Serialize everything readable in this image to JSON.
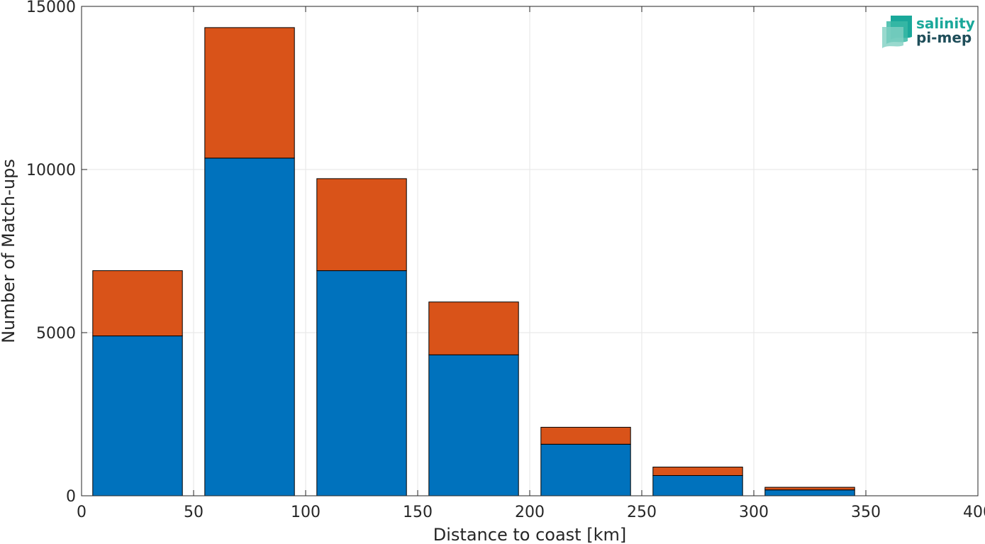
{
  "chart_data": {
    "type": "bar",
    "stacked": true,
    "xlabel": "Distance to coast [km]",
    "ylabel": "Number of Match-ups",
    "xlim": [
      0,
      400
    ],
    "ylim": [
      0,
      15000
    ],
    "xticks": [
      0,
      50,
      100,
      150,
      200,
      250,
      300,
      350,
      400
    ],
    "yticks": [
      0,
      5000,
      10000,
      15000
    ],
    "grid": true,
    "bin_width": 40,
    "x": [
      25,
      75,
      125,
      175,
      225,
      275,
      325
    ],
    "series": [
      {
        "color": "#0072BD",
        "values": [
          4900,
          10350,
          6900,
          4320,
          1580,
          620,
          180
        ]
      },
      {
        "color": "#D95319",
        "values": [
          2000,
          4000,
          2820,
          1620,
          520,
          260,
          80
        ]
      }
    ]
  },
  "logo": {
    "line1": "salinity",
    "line2": "pi-mep",
    "color1": "#1aa89a",
    "color2": "#1f4e5a"
  }
}
